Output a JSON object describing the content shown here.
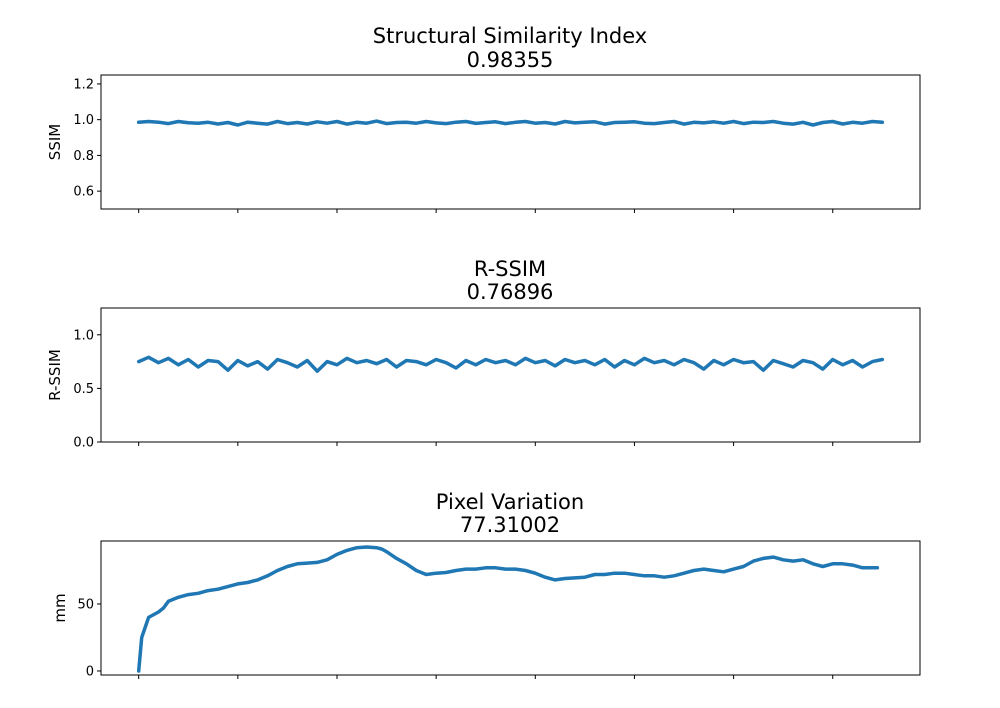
{
  "chart_data": [
    {
      "type": "line",
      "title": "Structural Similarity Index",
      "subtitle": "0.98355",
      "xlabel": "",
      "ylabel": "SSIM",
      "ylim": [
        0.5,
        1.25
      ],
      "xlim": [
        -38,
        788
      ],
      "yticks": [
        0.6,
        0.8,
        1.0,
        1.2
      ],
      "ytick_labels": [
        "0.6",
        "0.8",
        "1.0",
        "1.2"
      ],
      "xticks": [
        0,
        100,
        200,
        300,
        400,
        500,
        600,
        700
      ],
      "color": "#1f77b4",
      "series": [
        {
          "x": [
            0,
            10,
            20,
            30,
            40,
            50,
            60,
            70,
            80,
            90,
            100,
            110,
            120,
            130,
            140,
            150,
            160,
            170,
            180,
            190,
            200,
            210,
            220,
            230,
            240,
            250,
            260,
            270,
            280,
            290,
            300,
            310,
            320,
            330,
            340,
            350,
            360,
            370,
            380,
            390,
            400,
            410,
            420,
            430,
            440,
            450,
            460,
            470,
            480,
            490,
            500,
            510,
            520,
            530,
            540,
            550,
            560,
            570,
            580,
            590,
            600,
            610,
            620,
            630,
            640,
            650,
            660,
            670,
            680,
            690,
            700,
            710,
            720,
            730,
            740,
            750
          ],
          "values": [
            0.985,
            0.99,
            0.986,
            0.978,
            0.99,
            0.983,
            0.98,
            0.985,
            0.976,
            0.984,
            0.97,
            0.986,
            0.98,
            0.975,
            0.99,
            0.978,
            0.984,
            0.976,
            0.988,
            0.98,
            0.99,
            0.975,
            0.985,
            0.98,
            0.992,
            0.978,
            0.984,
            0.985,
            0.98,
            0.99,
            0.982,
            0.978,
            0.986,
            0.99,
            0.979,
            0.984,
            0.988,
            0.978,
            0.985,
            0.99,
            0.98,
            0.984,
            0.976,
            0.99,
            0.982,
            0.985,
            0.988,
            0.975,
            0.984,
            0.986,
            0.988,
            0.98,
            0.978,
            0.984,
            0.99,
            0.975,
            0.985,
            0.982,
            0.988,
            0.98,
            0.99,
            0.978,
            0.986,
            0.984,
            0.99,
            0.98,
            0.975,
            0.985,
            0.97,
            0.984,
            0.99,
            0.976,
            0.985,
            0.98,
            0.99,
            0.985
          ]
        }
      ]
    },
    {
      "type": "line",
      "title": "R-SSIM",
      "subtitle": "0.76896",
      "xlabel": "",
      "ylabel": "R-SSIM",
      "ylim": [
        0.0,
        1.25
      ],
      "xlim": [
        -38,
        788
      ],
      "yticks": [
        0.0,
        0.5,
        1.0
      ],
      "ytick_labels": [
        "0.0",
        "0.5",
        "1.0"
      ],
      "xticks": [
        0,
        100,
        200,
        300,
        400,
        500,
        600,
        700
      ],
      "color": "#1f77b4",
      "series": [
        {
          "x": [
            0,
            10,
            20,
            30,
            40,
            50,
            60,
            70,
            80,
            90,
            100,
            110,
            120,
            130,
            140,
            150,
            160,
            170,
            180,
            190,
            200,
            210,
            220,
            230,
            240,
            250,
            260,
            270,
            280,
            290,
            300,
            310,
            320,
            330,
            340,
            350,
            360,
            370,
            380,
            390,
            400,
            410,
            420,
            430,
            440,
            450,
            460,
            470,
            480,
            490,
            500,
            510,
            520,
            530,
            540,
            550,
            560,
            570,
            580,
            590,
            600,
            610,
            620,
            630,
            640,
            650,
            660,
            670,
            680,
            690,
            700,
            710,
            720,
            730,
            740,
            750
          ],
          "values": [
            0.75,
            0.79,
            0.74,
            0.78,
            0.72,
            0.77,
            0.7,
            0.76,
            0.75,
            0.67,
            0.76,
            0.71,
            0.75,
            0.68,
            0.77,
            0.74,
            0.7,
            0.76,
            0.66,
            0.75,
            0.72,
            0.78,
            0.74,
            0.76,
            0.73,
            0.77,
            0.7,
            0.76,
            0.75,
            0.72,
            0.77,
            0.74,
            0.69,
            0.76,
            0.72,
            0.77,
            0.74,
            0.76,
            0.72,
            0.78,
            0.74,
            0.76,
            0.71,
            0.77,
            0.74,
            0.76,
            0.72,
            0.77,
            0.7,
            0.76,
            0.72,
            0.78,
            0.74,
            0.76,
            0.72,
            0.77,
            0.74,
            0.68,
            0.76,
            0.72,
            0.77,
            0.74,
            0.75,
            0.67,
            0.76,
            0.73,
            0.7,
            0.76,
            0.74,
            0.68,
            0.77,
            0.72,
            0.76,
            0.7,
            0.75,
            0.77
          ]
        }
      ]
    },
    {
      "type": "line",
      "title": "Pixel Variation",
      "subtitle": "77.31002",
      "xlabel": "",
      "ylabel": "mm",
      "ylim": [
        -3,
        97
      ],
      "xlim": [
        -38,
        788
      ],
      "yticks": [
        0,
        50
      ],
      "ytick_labels": [
        "0",
        "50"
      ],
      "xticks": [
        0,
        100,
        200,
        300,
        400,
        500,
        600,
        700
      ],
      "color": "#1f77b4",
      "series": [
        {
          "x": [
            0,
            3,
            10,
            20,
            25,
            30,
            35,
            40,
            50,
            60,
            70,
            80,
            90,
            100,
            110,
            120,
            130,
            140,
            150,
            160,
            170,
            180,
            190,
            200,
            210,
            220,
            230,
            240,
            245,
            250,
            260,
            270,
            280,
            290,
            300,
            310,
            320,
            330,
            340,
            350,
            360,
            370,
            380,
            390,
            400,
            410,
            420,
            430,
            440,
            450,
            460,
            470,
            480,
            490,
            500,
            510,
            520,
            530,
            540,
            550,
            560,
            570,
            580,
            590,
            600,
            610,
            620,
            630,
            640,
            650,
            660,
            670,
            680,
            690,
            700,
            710,
            720,
            730,
            740,
            745
          ],
          "values": [
            0,
            25,
            40,
            44,
            47,
            52,
            53.5,
            55,
            57,
            58,
            60,
            61,
            63,
            65,
            66,
            68,
            71,
            75,
            78,
            80,
            80.5,
            81,
            83,
            87,
            90,
            92,
            92.5,
            92,
            91,
            89,
            84,
            80,
            75,
            72,
            73,
            73.5,
            75,
            76,
            76,
            77,
            77,
            76,
            76,
            75,
            73,
            70,
            68,
            69,
            69.5,
            70,
            72,
            72,
            73,
            73,
            72,
            71,
            71,
            70,
            71,
            73,
            75,
            76,
            75,
            74,
            76,
            78,
            82,
            84,
            85,
            83,
            82,
            83,
            80,
            78,
            80,
            80,
            79,
            77,
            77,
            77
          ]
        }
      ]
    }
  ]
}
